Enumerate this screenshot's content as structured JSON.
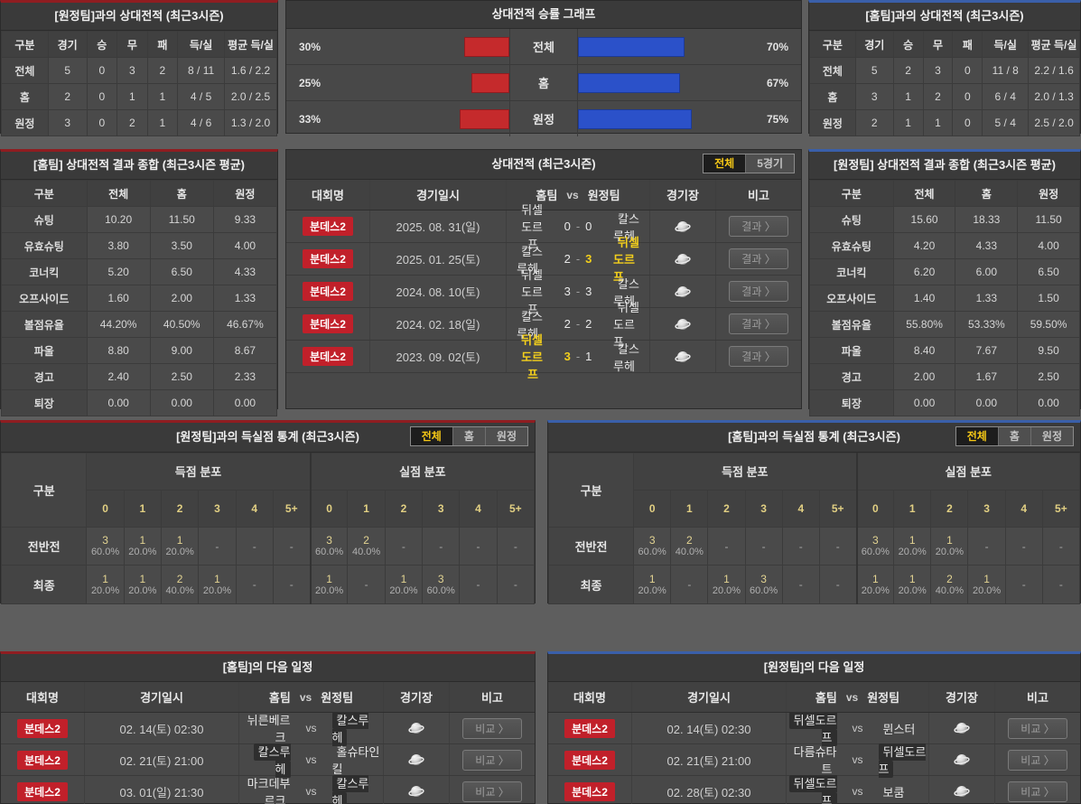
{
  "colors": {
    "accent_red": "#8f1d21",
    "accent_blue": "#3a5fa9",
    "bar_red": "#c52a2c",
    "bar_blue": "#2b51c9",
    "winner_yellow": "#f3cf1c",
    "tab_active_yellow": "#f5c816",
    "badge_red": "#c1202a"
  },
  "panels": {
    "vs_away_record": {
      "title": "[원정팀]과의 상대전적 (최근3시즌)",
      "columns": [
        "구분",
        "경기",
        "승",
        "무",
        "패",
        "득/실",
        "평균 득/실"
      ],
      "rows": [
        [
          "전체",
          "5",
          "0",
          "3",
          "2",
          "8 / 11",
          "1.6 / 2.2"
        ],
        [
          "홈",
          "2",
          "0",
          "1",
          "1",
          "4 / 5",
          "2.0 / 2.5"
        ],
        [
          "원정",
          "3",
          "0",
          "2",
          "1",
          "4 / 6",
          "1.3 / 2.0"
        ]
      ]
    },
    "win_rate_graph": {
      "title": "상대전적 승률 그래프",
      "rows": [
        {
          "left_pct": "30%",
          "left_val": 30,
          "label": "전체",
          "right_val": 70,
          "right_pct": "70%"
        },
        {
          "left_pct": "25%",
          "left_val": 25,
          "label": "홈",
          "right_val": 67,
          "right_pct": "67%"
        },
        {
          "left_pct": "33%",
          "left_val": 33,
          "label": "원정",
          "right_val": 75,
          "right_pct": "75%"
        }
      ]
    },
    "vs_home_record": {
      "title": "[홈팀]과의 상대전적 (최근3시즌)",
      "columns": [
        "구분",
        "경기",
        "승",
        "무",
        "패",
        "득/실",
        "평균 득/실"
      ],
      "rows": [
        [
          "전체",
          "5",
          "2",
          "3",
          "0",
          "11 / 8",
          "2.2 / 1.6"
        ],
        [
          "홈",
          "3",
          "1",
          "2",
          "0",
          "6 / 4",
          "2.0 / 1.3"
        ],
        [
          "원정",
          "2",
          "1",
          "1",
          "0",
          "5 / 4",
          "2.5 / 2.0"
        ]
      ]
    },
    "home_result_summary": {
      "title": "[홈팀] 상대전적 결과 종합 (최근3시즌 평균)",
      "columns": [
        "구분",
        "전체",
        "홈",
        "원정"
      ],
      "rows": [
        [
          "슈팅",
          "10.20",
          "11.50",
          "9.33"
        ],
        [
          "유효슈팅",
          "3.80",
          "3.50",
          "4.00"
        ],
        [
          "코너킥",
          "5.20",
          "6.50",
          "4.33"
        ],
        [
          "오프사이드",
          "1.60",
          "2.00",
          "1.33"
        ],
        [
          "볼점유율",
          "44.20%",
          "40.50%",
          "46.67%"
        ],
        [
          "파울",
          "8.80",
          "9.00",
          "8.67"
        ],
        [
          "경고",
          "2.40",
          "2.50",
          "2.33"
        ],
        [
          "퇴장",
          "0.00",
          "0.00",
          "0.00"
        ]
      ]
    },
    "away_result_summary": {
      "title": "[원정팀] 상대전적 결과 종합 (최근3시즌 평균)",
      "columns": [
        "구분",
        "전체",
        "홈",
        "원정"
      ],
      "rows": [
        [
          "슈팅",
          "15.60",
          "18.33",
          "11.50"
        ],
        [
          "유효슈팅",
          "4.20",
          "4.33",
          "4.00"
        ],
        [
          "코너킥",
          "6.20",
          "6.00",
          "6.50"
        ],
        [
          "오프사이드",
          "1.40",
          "1.33",
          "1.50"
        ],
        [
          "볼점유율",
          "55.80%",
          "53.33%",
          "59.50%"
        ],
        [
          "파울",
          "8.40",
          "7.67",
          "9.50"
        ],
        [
          "경고",
          "2.00",
          "1.67",
          "2.50"
        ],
        [
          "퇴장",
          "0.00",
          "0.00",
          "0.00"
        ]
      ]
    },
    "h2h_matches": {
      "title": "상대전적 (최근3시즌)",
      "tabs": [
        {
          "label": "전체",
          "active": true
        },
        {
          "label": "5경기",
          "active": false
        }
      ],
      "header": {
        "league": "대회명",
        "date": "경기일시",
        "home": "홈팀",
        "vs": "vs",
        "away": "원정팀",
        "arena": "경기장",
        "note": "비고"
      },
      "button_label": "결과 〉",
      "rows": [
        {
          "league": "분데스2",
          "date": "2025. 08. 31(일)",
          "home": "뒤셀도르프",
          "score_home": "0",
          "score_away": "0",
          "away": "칼스루헤",
          "winner": "none"
        },
        {
          "league": "분데스2",
          "date": "2025. 01. 25(토)",
          "home": "칼스루헤",
          "score_home": "2",
          "score_away": "3",
          "away": "뒤셀도르프",
          "winner": "away"
        },
        {
          "league": "분데스2",
          "date": "2024. 08. 10(토)",
          "home": "뒤셀도르프",
          "score_home": "3",
          "score_away": "3",
          "away": "칼스루헤",
          "winner": "none"
        },
        {
          "league": "분데스2",
          "date": "2024. 02. 18(일)",
          "home": "칼스루헤",
          "score_home": "2",
          "score_away": "2",
          "away": "뒤셀도르프",
          "winner": "none"
        },
        {
          "league": "분데스2",
          "date": "2023. 09. 02(토)",
          "home": "뒤셀도르프",
          "score_home": "3",
          "score_away": "1",
          "away": "칼스루헤",
          "winner": "home"
        }
      ]
    },
    "goals_vs_away": {
      "title": "[원정팀]과의 득실점 통계 (최근3시즌)",
      "tabs": [
        {
          "label": "전체",
          "active": true
        },
        {
          "label": "홈",
          "active": false
        },
        {
          "label": "원정",
          "active": false
        }
      ],
      "col_label": "구분",
      "group_scored": "득점 분포",
      "group_conceded": "실점 분포",
      "bins": [
        "0",
        "1",
        "2",
        "3",
        "4",
        "5+"
      ],
      "rows": [
        {
          "label": "전반전",
          "scored": [
            [
              "3",
              "60.0%"
            ],
            [
              "1",
              "20.0%"
            ],
            [
              "1",
              "20.0%"
            ],
            null,
            null,
            null
          ],
          "conceded": [
            [
              "3",
              "60.0%"
            ],
            [
              "2",
              "40.0%"
            ],
            null,
            null,
            null,
            null
          ]
        },
        {
          "label": "최종",
          "scored": [
            [
              "1",
              "20.0%"
            ],
            [
              "1",
              "20.0%"
            ],
            [
              "2",
              "40.0%"
            ],
            [
              "1",
              "20.0%"
            ],
            null,
            null
          ],
          "conceded": [
            [
              "1",
              "20.0%"
            ],
            null,
            [
              "1",
              "20.0%"
            ],
            [
              "3",
              "60.0%"
            ],
            null,
            null
          ]
        }
      ]
    },
    "goals_vs_home": {
      "title": "[홈팀]과의 득실점 통계 (최근3시즌)",
      "tabs": [
        {
          "label": "전체",
          "active": true
        },
        {
          "label": "홈",
          "active": false
        },
        {
          "label": "원정",
          "active": false
        }
      ],
      "col_label": "구분",
      "group_scored": "득점 분포",
      "group_conceded": "실점 분포",
      "bins": [
        "0",
        "1",
        "2",
        "3",
        "4",
        "5+"
      ],
      "rows": [
        {
          "label": "전반전",
          "scored": [
            [
              "3",
              "60.0%"
            ],
            [
              "2",
              "40.0%"
            ],
            null,
            null,
            null,
            null
          ],
          "conceded": [
            [
              "3",
              "60.0%"
            ],
            [
              "1",
              "20.0%"
            ],
            [
              "1",
              "20.0%"
            ],
            null,
            null,
            null
          ]
        },
        {
          "label": "최종",
          "scored": [
            [
              "1",
              "20.0%"
            ],
            null,
            [
              "1",
              "20.0%"
            ],
            [
              "3",
              "60.0%"
            ],
            null,
            null
          ],
          "conceded": [
            [
              "1",
              "20.0%"
            ],
            [
              "1",
              "20.0%"
            ],
            [
              "2",
              "40.0%"
            ],
            [
              "1",
              "20.0%"
            ],
            null,
            null
          ]
        }
      ]
    },
    "home_next_schedule": {
      "title": "[홈팀]의 다음 일정",
      "header": {
        "league": "대회명",
        "date": "경기일시",
        "home": "홈팀",
        "vs": "vs",
        "away": "원정팀",
        "arena": "경기장",
        "note": "비고"
      },
      "button_label": "비교 〉",
      "rows": [
        {
          "league": "분데스2",
          "date": "02. 14(토) 02:30",
          "home": "뉘른베르크",
          "away": "칼스루헤",
          "highlight": "away"
        },
        {
          "league": "분데스2",
          "date": "02. 21(토) 21:00",
          "home": "칼스루헤",
          "away": "홀슈타인킬",
          "highlight": "home"
        },
        {
          "league": "분데스2",
          "date": "03. 01(일) 21:30",
          "home": "마크데부르크",
          "away": "칼스루헤",
          "highlight": "away"
        }
      ]
    },
    "away_next_schedule": {
      "title": "[원정팀]의 다음 일정",
      "header": {
        "league": "대회명",
        "date": "경기일시",
        "home": "홈팀",
        "vs": "vs",
        "away": "원정팀",
        "arena": "경기장",
        "note": "비고"
      },
      "button_label": "비교 〉",
      "rows": [
        {
          "league": "분데스2",
          "date": "02. 14(토) 02:30",
          "home": "뒤셀도르프",
          "away": "뮌스터",
          "highlight": "home"
        },
        {
          "league": "분데스2",
          "date": "02. 21(토) 21:00",
          "home": "다름슈타트",
          "away": "뒤셀도르프",
          "highlight": "away"
        },
        {
          "league": "분데스2",
          "date": "02. 28(토) 02:30",
          "home": "뒤셀도르프",
          "away": "보쿰",
          "highlight": "home"
        }
      ]
    }
  }
}
